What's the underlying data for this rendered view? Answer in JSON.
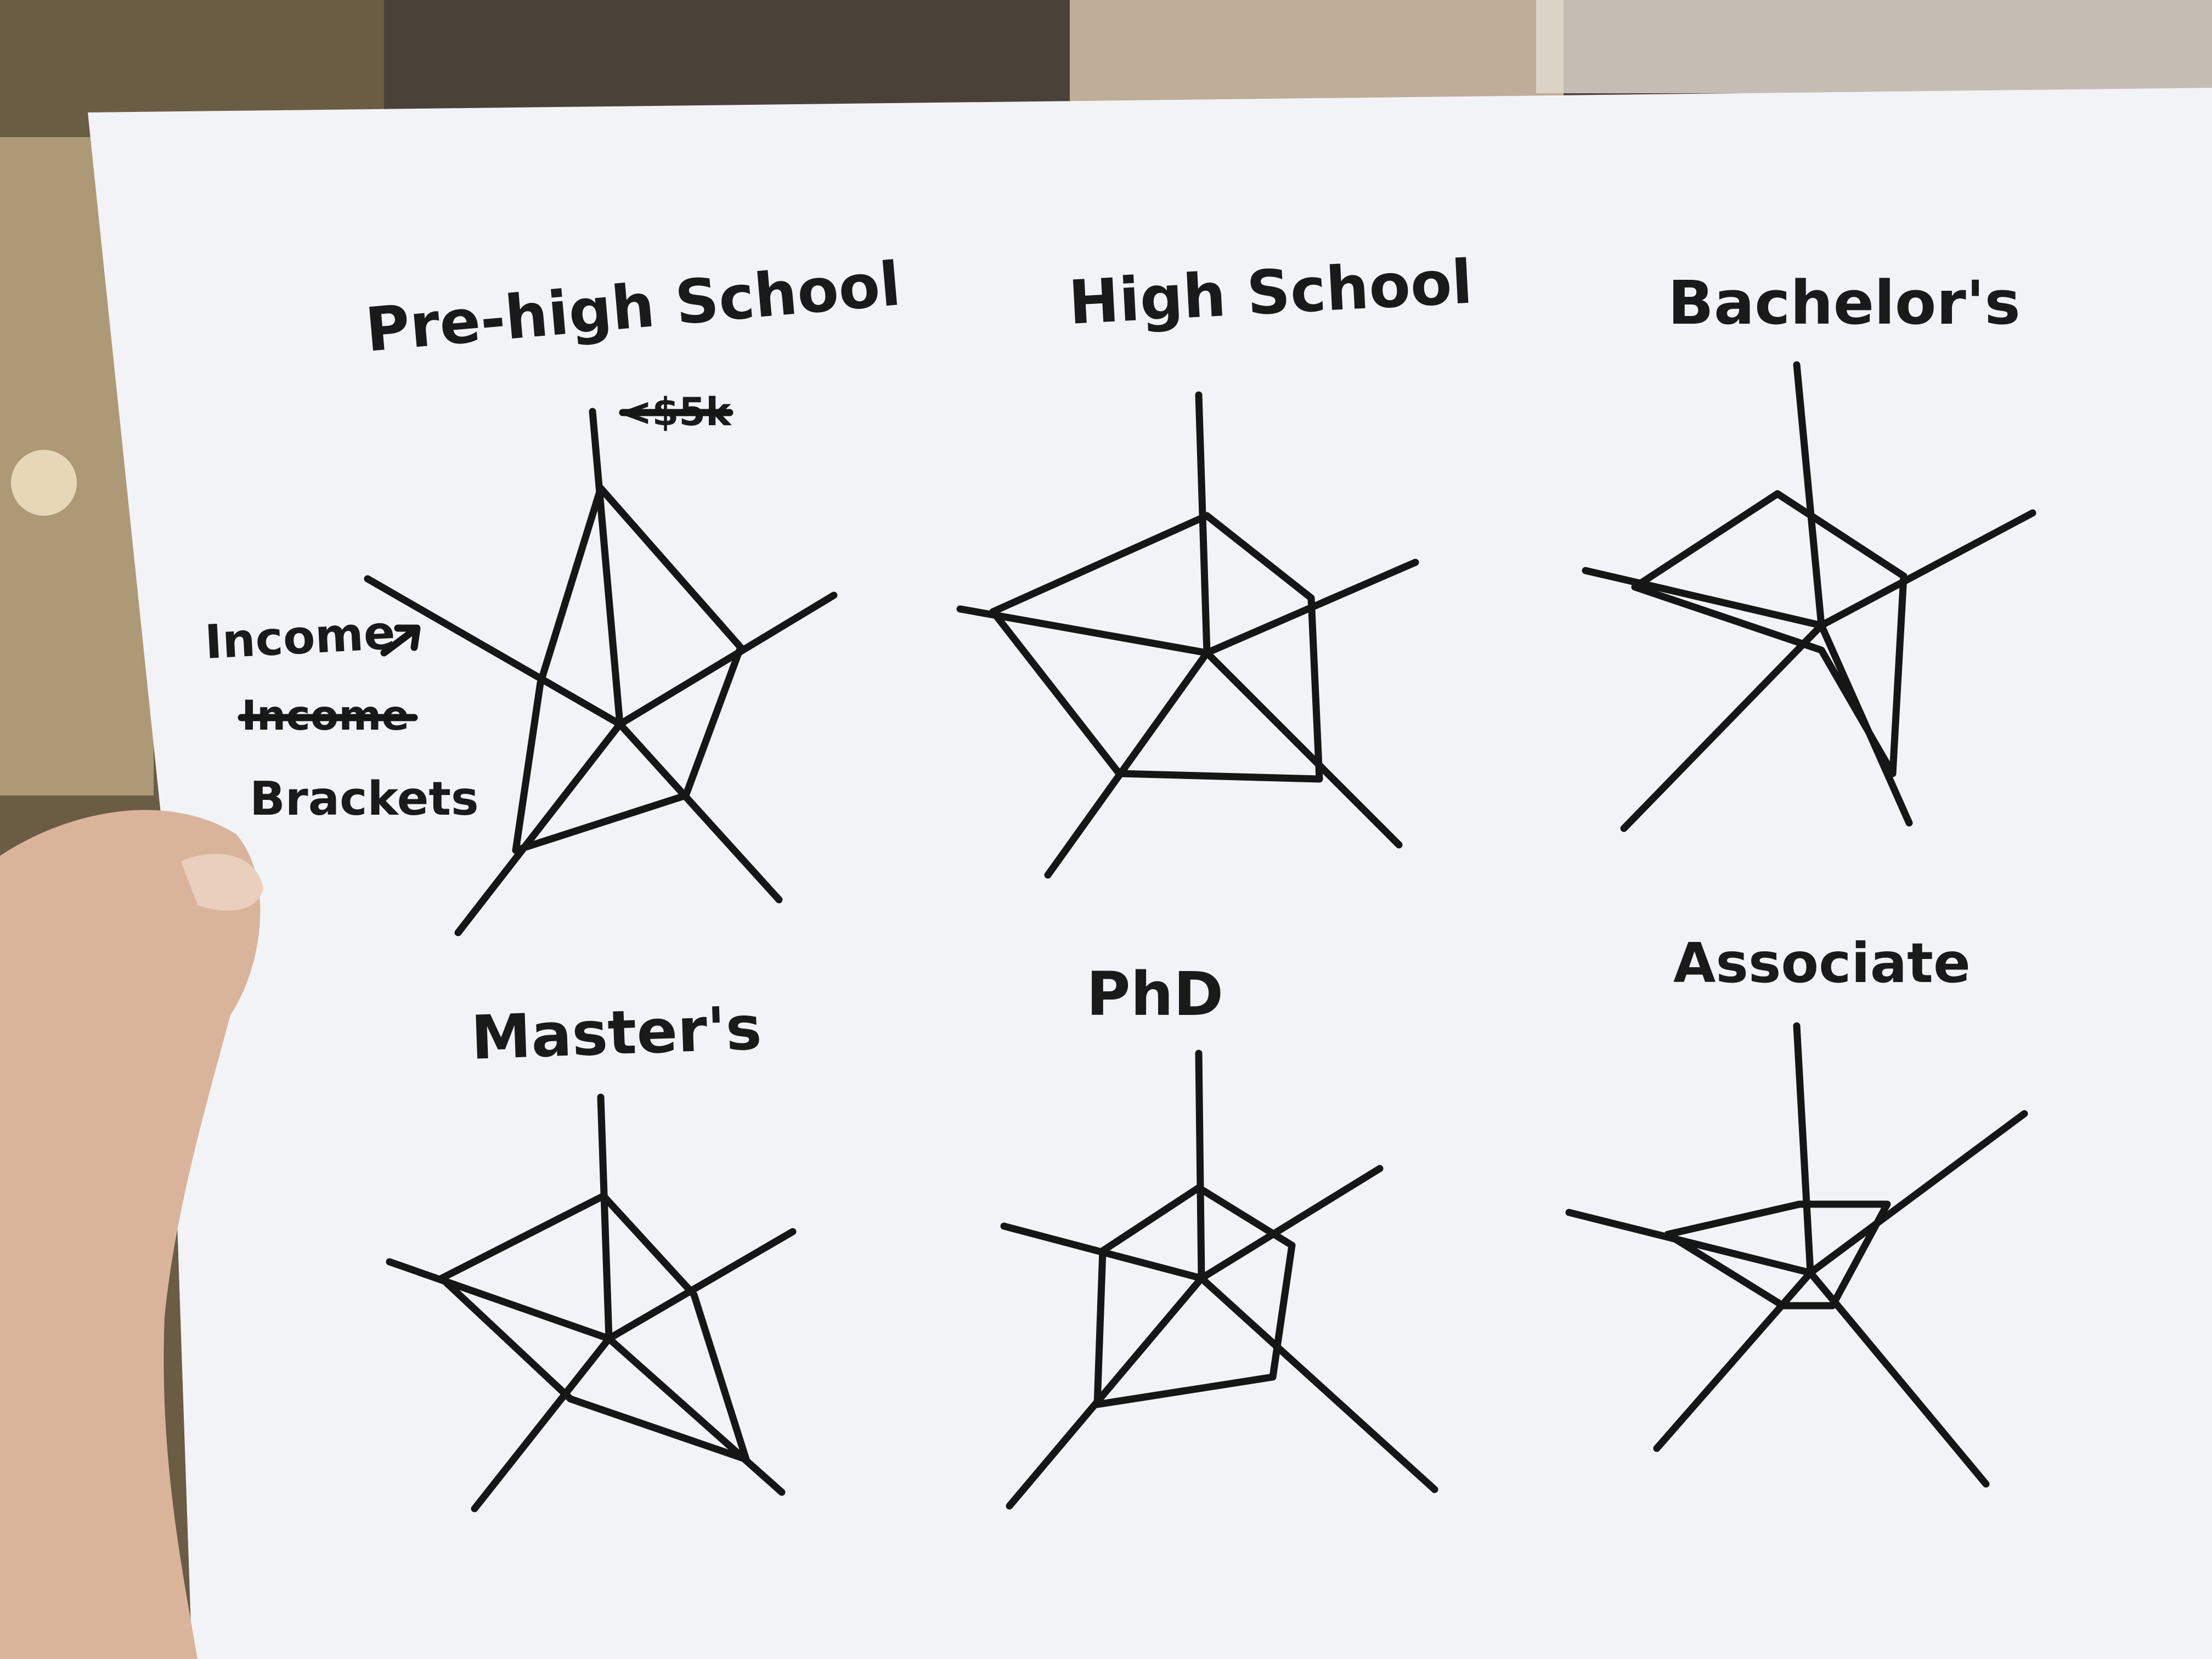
{
  "sheet": {
    "annotations": {
      "top_axis_label": "<$5k",
      "left_axis_label_line1": "Income",
      "left_axis_label_struck": "Income",
      "left_axis_label_line2": "Brackets"
    },
    "sketches": [
      {
        "title": "Pre-high School"
      },
      {
        "title": "High School"
      },
      {
        "title": "Bachelor's"
      },
      {
        "title": "Master's"
      },
      {
        "title": "PhD"
      },
      {
        "title": "Associate"
      }
    ]
  },
  "colors": {
    "paper": "#f2f3f6",
    "ink": "#161616",
    "hand": "#d9b49b",
    "background": "#4a4238"
  }
}
